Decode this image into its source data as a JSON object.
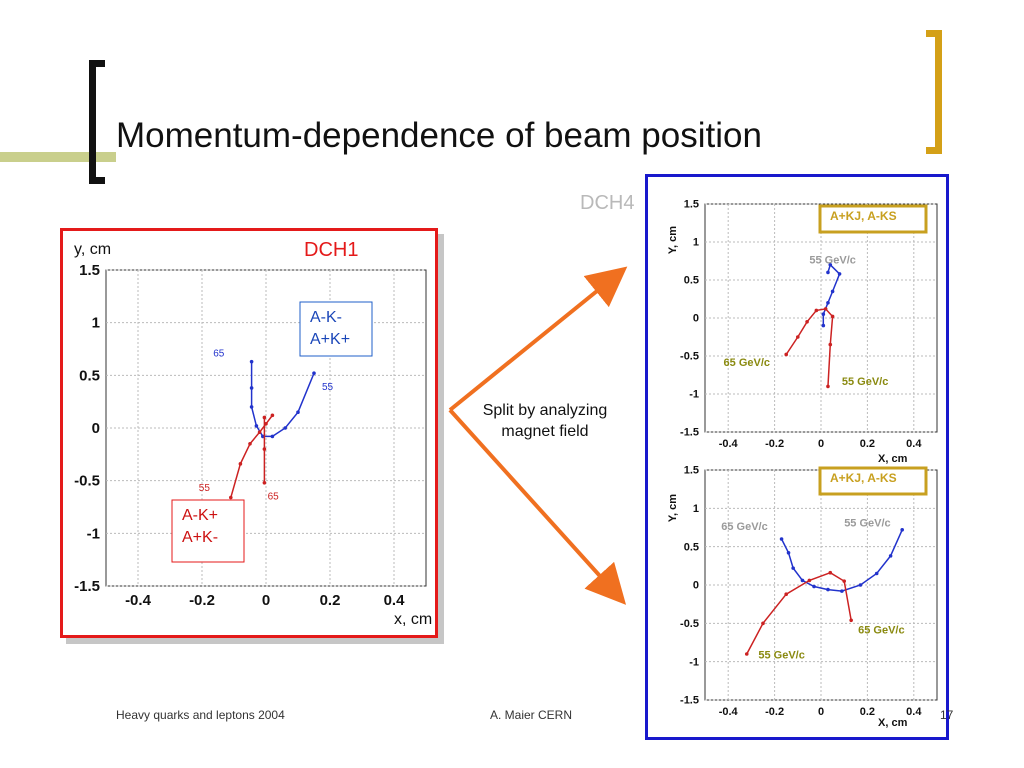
{
  "slide": {
    "title": "Momentum-dependence of beam position"
  },
  "split_text": "Split by analyzing magnet field",
  "dch4_label": "DCH4",
  "footer": {
    "left": "Heavy quarks and leptons 2004",
    "center": "A. Maier CERN",
    "page": "17"
  },
  "colors": {
    "accent_red": "#e41a1a",
    "accent_blue": "#1818cc",
    "arrow": "#f07020",
    "gold": "#c8a020",
    "series_blue": "#2233cc",
    "series_red": "#cc2222",
    "olive_text": "#8a8a10"
  },
  "chart_data": [
    {
      "type": "line",
      "title": "DCH1",
      "xlabel": "x, cm",
      "ylabel": "y, cm",
      "xlim": [
        -0.5,
        0.5
      ],
      "ylim": [
        -1.5,
        1.5
      ],
      "xticks": [
        "-0.4",
        "-0.2",
        "0",
        "0.2",
        "0.4"
      ],
      "yticks": [
        "1.5",
        "1",
        "0.5",
        "0",
        "-0.5",
        "-1",
        "-1.5"
      ],
      "grid": true,
      "legend": [
        "A-K-\nA+K+",
        "A-K+\nA+K-"
      ],
      "series": [
        {
          "name": "A-K- A+K+",
          "color": "#2233cc",
          "points": [
            [
              -0.045,
              0.63
            ],
            [
              -0.045,
              0.38
            ],
            [
              -0.045,
              0.2
            ],
            [
              -0.03,
              0.02
            ],
            [
              -0.01,
              -0.08
            ],
            [
              0.02,
              -0.08
            ],
            [
              0.06,
              0.0
            ],
            [
              0.1,
              0.15
            ],
            [
              0.15,
              0.52
            ]
          ]
        },
        {
          "name": "A-K+ A+K-",
          "color": "#cc2222",
          "points": [
            [
              -0.11,
              -0.66
            ],
            [
              -0.08,
              -0.34
            ],
            [
              -0.05,
              -0.15
            ],
            [
              -0.02,
              -0.04
            ],
            [
              0.0,
              0.04
            ],
            [
              0.02,
              0.12
            ]
          ]
        },
        {
          "name": "",
          "color": "#cc2222",
          "points": [
            [
              -0.005,
              -0.52
            ],
            [
              -0.005,
              -0.2
            ],
            [
              -0.005,
              0.1
            ]
          ]
        }
      ],
      "annotations": [
        {
          "text": "65",
          "x": -0.165,
          "y": 0.68,
          "color": "#2233cc"
        },
        {
          "text": "55",
          "x": 0.175,
          "y": 0.36,
          "color": "#2233cc"
        },
        {
          "text": "55",
          "x": -0.21,
          "y": -0.6,
          "color": "#cc2222"
        },
        {
          "text": "65",
          "x": 0.005,
          "y": -0.68,
          "color": "#cc2222"
        }
      ]
    },
    {
      "type": "line",
      "title": "",
      "xlabel": "X, cm",
      "ylabel": "Y, cm",
      "xlim": [
        -0.5,
        0.5
      ],
      "ylim": [
        -1.5,
        1.5
      ],
      "xticks": [
        "-0.4",
        "-0.2",
        "0",
        "0.2",
        "0.4"
      ],
      "yticks": [
        "1.5",
        "1",
        "0.5",
        "0",
        "-0.5",
        "-1",
        "-1.5"
      ],
      "grid": true,
      "legend": [
        "A+KJ, A-KS"
      ],
      "series": [
        {
          "name": "A+KJ, A-KS",
          "color": "#2233cc",
          "points": [
            [
              0.01,
              -0.1
            ],
            [
              0.01,
              0.05
            ],
            [
              0.03,
              0.2
            ],
            [
              0.05,
              0.35
            ],
            [
              0.08,
              0.58
            ],
            [
              0.04,
              0.7
            ],
            [
              0.03,
              0.6
            ]
          ]
        },
        {
          "name": "",
          "color": "#cc2222",
          "points": [
            [
              -0.15,
              -0.48
            ],
            [
              -0.1,
              -0.25
            ],
            [
              -0.06,
              -0.05
            ],
            [
              -0.02,
              0.1
            ],
            [
              0.02,
              0.12
            ],
            [
              0.05,
              0.02
            ],
            [
              0.04,
              -0.35
            ],
            [
              0.03,
              -0.9
            ]
          ]
        }
      ],
      "annotations": [
        {
          "text": "55 GeV/c",
          "x": -0.05,
          "y": 0.72,
          "color": "#9a9a9a"
        },
        {
          "text": "65 GeV/c",
          "x": -0.42,
          "y": -0.63,
          "color": "#8a8a10"
        },
        {
          "text": "55 GeV/c",
          "x": 0.09,
          "y": -0.88,
          "color": "#8a8a10"
        }
      ]
    },
    {
      "type": "line",
      "title": "",
      "xlabel": "X, cm",
      "ylabel": "Y, cm",
      "xlim": [
        -0.5,
        0.5
      ],
      "ylim": [
        -1.5,
        1.5
      ],
      "xticks": [
        "-0.4",
        "-0.2",
        "0",
        "0.2",
        "0.4"
      ],
      "yticks": [
        "1.5",
        "1",
        "0.5",
        "0",
        "-0.5",
        "-1",
        "-1.5"
      ],
      "grid": true,
      "legend": [
        "A+KJ, A-KS"
      ],
      "series": [
        {
          "name": "A+KJ, A-KS",
          "color": "#2233cc",
          "points": [
            [
              -0.17,
              0.6
            ],
            [
              -0.14,
              0.42
            ],
            [
              -0.12,
              0.22
            ],
            [
              -0.08,
              0.06
            ],
            [
              -0.03,
              -0.02
            ],
            [
              0.03,
              -0.06
            ],
            [
              0.09,
              -0.08
            ],
            [
              0.17,
              0.0
            ],
            [
              0.24,
              0.15
            ],
            [
              0.3,
              0.38
            ],
            [
              0.35,
              0.72
            ]
          ]
        },
        {
          "name": "",
          "color": "#cc2222",
          "points": [
            [
              -0.32,
              -0.9
            ],
            [
              -0.25,
              -0.5
            ],
            [
              -0.15,
              -0.12
            ],
            [
              -0.05,
              0.06
            ],
            [
              0.04,
              0.16
            ],
            [
              0.1,
              0.05
            ],
            [
              0.13,
              -0.46
            ]
          ]
        }
      ],
      "annotations": [
        {
          "text": "65 GeV/c",
          "x": -0.43,
          "y": 0.72,
          "color": "#9a9a9a"
        },
        {
          "text": "55 GeV/c",
          "x": 0.1,
          "y": 0.76,
          "color": "#9a9a9a"
        },
        {
          "text": "65 GeV/c",
          "x": 0.16,
          "y": -0.63,
          "color": "#8a8a10"
        },
        {
          "text": "55 GeV/c",
          "x": -0.27,
          "y": -0.96,
          "color": "#8a8a10"
        }
      ]
    }
  ]
}
